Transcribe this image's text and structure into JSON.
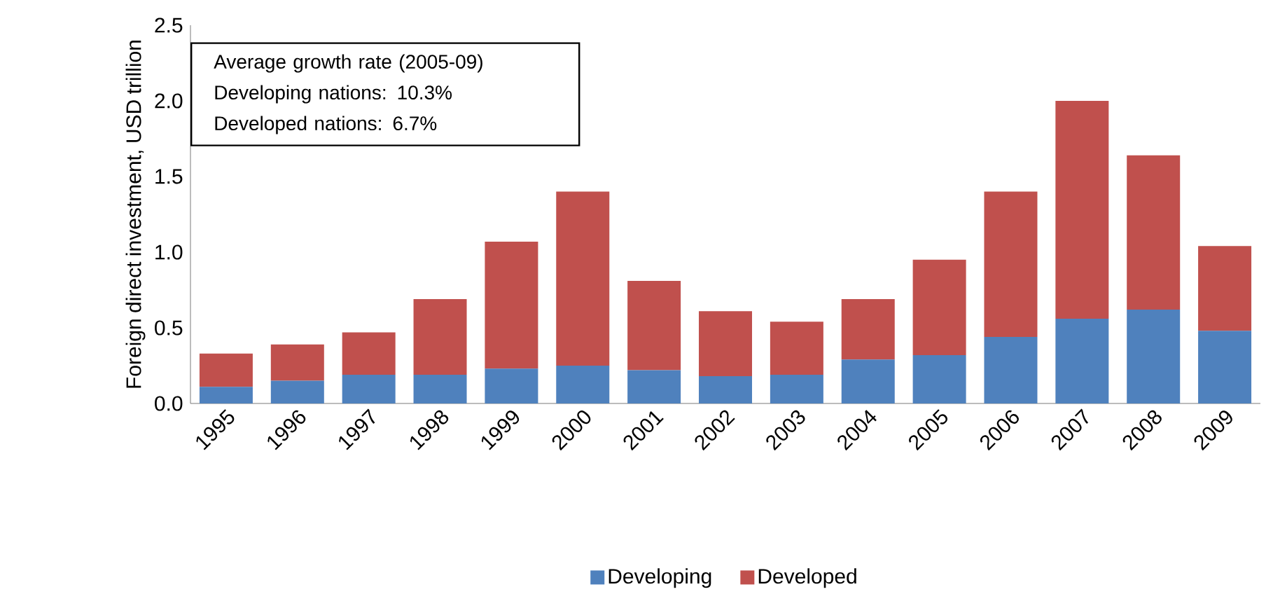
{
  "chart_data": {
    "type": "bar",
    "stacked": true,
    "categories": [
      "1995",
      "1996",
      "1997",
      "1998",
      "1999",
      "2000",
      "2001",
      "2002",
      "2003",
      "2004",
      "2005",
      "2006",
      "2007",
      "2008",
      "2009"
    ],
    "series": [
      {
        "name": "Developing",
        "color": "#4f81bd",
        "values": [
          0.11,
          0.15,
          0.19,
          0.19,
          0.23,
          0.25,
          0.22,
          0.18,
          0.19,
          0.29,
          0.32,
          0.44,
          0.56,
          0.62,
          0.48
        ]
      },
      {
        "name": "Developed",
        "color": "#c0504d",
        "values": [
          0.22,
          0.24,
          0.28,
          0.5,
          0.84,
          1.15,
          0.59,
          0.43,
          0.35,
          0.4,
          0.63,
          0.96,
          1.44,
          1.02,
          0.56
        ]
      }
    ],
    "ylabel": "Foreign direct investment, USD trillion",
    "ylim": [
      0,
      2.5
    ],
    "yticks": [
      {
        "value": 0,
        "label": "0.0"
      },
      {
        "value": 0.5,
        "label": "0.5"
      },
      {
        "value": 1,
        "label": "1.0"
      },
      {
        "value": 1.5,
        "label": "1.5"
      },
      {
        "value": 2,
        "label": "2.0"
      },
      {
        "value": 2.5,
        "label": "2.5"
      }
    ],
    "annotations": [
      "Average growth rate (2005-09)",
      "Developing nations: 10.3%",
      "Developed nations: 6.7%"
    ],
    "legend": "bottom",
    "grid": false
  }
}
